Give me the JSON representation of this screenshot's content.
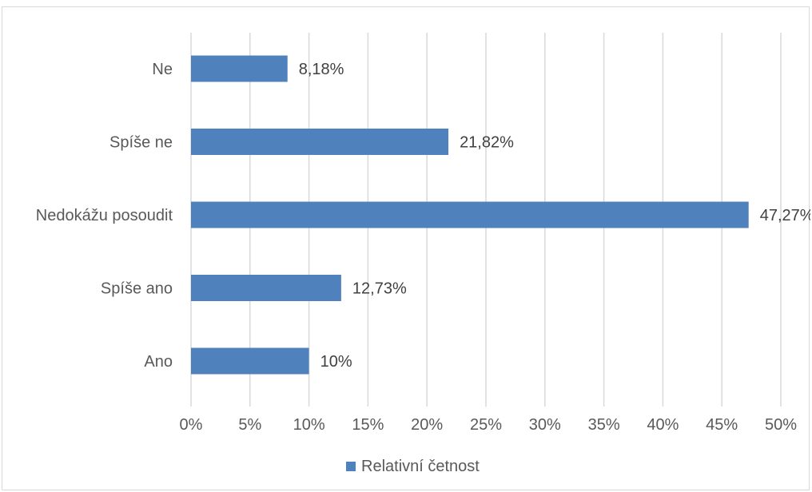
{
  "chart_data": {
    "type": "bar",
    "orientation": "horizontal",
    "title": "",
    "xlabel": "",
    "ylabel": "",
    "categories": [
      "Ne",
      "Spíše ne",
      "Nedokážu posoudit",
      "Spíše ano",
      "Ano"
    ],
    "series": [
      {
        "name": "Relativní četnost",
        "values": [
          8.18,
          21.82,
          47.27,
          12.73,
          10
        ],
        "labels": [
          "8,18%",
          "21,82%",
          "47,27%",
          "12,73%",
          "10%"
        ],
        "color": "#4f81bd"
      }
    ],
    "xlim": [
      0,
      50
    ],
    "x_ticks": [
      0,
      5,
      10,
      15,
      20,
      25,
      30,
      35,
      40,
      45,
      50
    ],
    "x_tick_labels": [
      "0%",
      "5%",
      "10%",
      "15%",
      "20%",
      "25%",
      "30%",
      "35%",
      "40%",
      "45%",
      "50%"
    ],
    "grid": true,
    "legend_position": "bottom",
    "gridline_color": "#d9d9d9"
  }
}
